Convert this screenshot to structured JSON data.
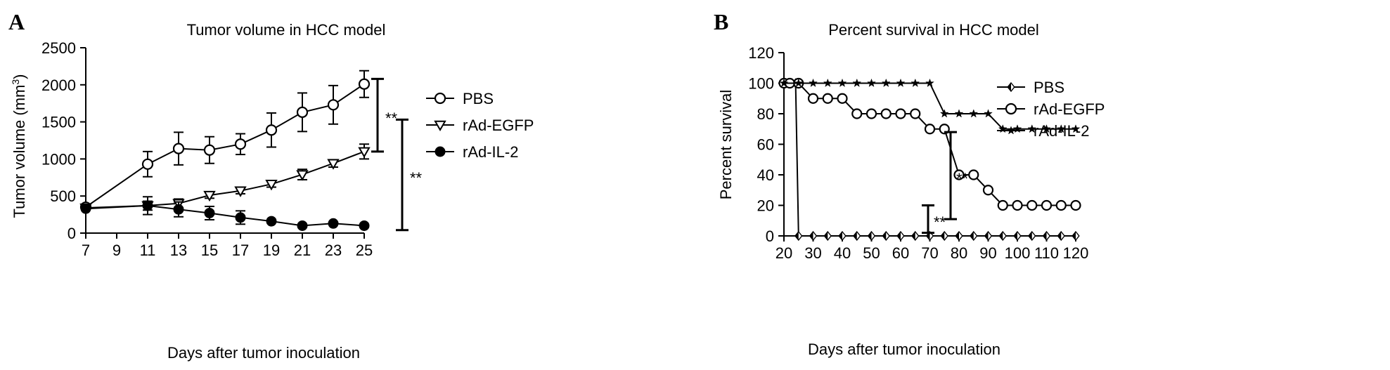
{
  "chart_data": [
    {
      "type": "line",
      "panel_label": "A",
      "title": "Tumor volume in HCC model",
      "xlabel": "Days after tumor inoculation",
      "ylabel_main": "Tumor volume (mm",
      "ylabel_sup": "3",
      "ylabel_end": ")",
      "xlim": [
        7,
        25
      ],
      "ylim": [
        0,
        2500
      ],
      "xticks": [
        7,
        9,
        11,
        13,
        15,
        17,
        19,
        21,
        23,
        25
      ],
      "yticks": [
        0,
        500,
        1000,
        1500,
        2000,
        2500
      ],
      "legend_position": "right",
      "series": [
        {
          "name": "PBS",
          "marker": "circle-open",
          "x": [
            7,
            11,
            13,
            15,
            17,
            19,
            21,
            23,
            25
          ],
          "y": [
            350,
            930,
            1140,
            1120,
            1200,
            1390,
            1630,
            1730,
            2010
          ],
          "err": [
            0,
            170,
            220,
            180,
            140,
            230,
            260,
            260,
            180
          ]
        },
        {
          "name": "rAd-EGFP",
          "marker": "triangle-down-open",
          "x": [
            7,
            11,
            13,
            15,
            17,
            19,
            21,
            23,
            25
          ],
          "y": [
            340,
            370,
            400,
            510,
            570,
            660,
            790,
            940,
            1100
          ],
          "err": [
            0,
            60,
            60,
            40,
            40,
            40,
            70,
            50,
            100
          ]
        },
        {
          "name": "rAd-IL-2",
          "marker": "circle-filled",
          "x": [
            7,
            11,
            13,
            15,
            17,
            19,
            21,
            23,
            25
          ],
          "y": [
            330,
            370,
            320,
            270,
            210,
            160,
            100,
            130,
            100
          ],
          "err": [
            0,
            120,
            100,
            90,
            90,
            0,
            0,
            0,
            0
          ]
        }
      ],
      "significance": [
        {
          "label": "**",
          "from": 1100,
          "to": 2080
        },
        {
          "label": "**",
          "from": 40,
          "to": 1530
        }
      ]
    },
    {
      "type": "line",
      "panel_label": "B",
      "title": "Percent survival in HCC model",
      "xlabel": "Days after tumor inoculation",
      "ylabel": "Percent survival",
      "xlim": [
        20,
        120
      ],
      "ylim": [
        0,
        120
      ],
      "xticks": [
        20,
        30,
        40,
        50,
        60,
        70,
        80,
        90,
        100,
        110,
        120
      ],
      "yticks": [
        0,
        20,
        40,
        60,
        80,
        100,
        120
      ],
      "legend_position": "right",
      "series": [
        {
          "name": "PBS",
          "marker": "diamond",
          "x": [
            20,
            22,
            24,
            25,
            30,
            35,
            40,
            45,
            50,
            55,
            60,
            65,
            70,
            75,
            80,
            85,
            90,
            95,
            100,
            105,
            110,
            115,
            120
          ],
          "y": [
            100,
            100,
            100,
            0,
            0,
            0,
            0,
            0,
            0,
            0,
            0,
            0,
            0,
            0,
            0,
            0,
            0,
            0,
            0,
            0,
            0,
            0,
            0
          ]
        },
        {
          "name": "rAd-EGFP",
          "marker": "circle-open",
          "x": [
            20,
            22,
            25,
            30,
            35,
            40,
            45,
            50,
            55,
            60,
            65,
            70,
            75,
            80,
            85,
            90,
            95,
            100,
            105,
            110,
            115,
            120
          ],
          "y": [
            100,
            100,
            100,
            90,
            90,
            90,
            80,
            80,
            80,
            80,
            80,
            70,
            70,
            40,
            40,
            30,
            20,
            20,
            20,
            20,
            20,
            20
          ]
        },
        {
          "name": "rAd-IL-2",
          "marker": "star",
          "x": [
            20,
            25,
            30,
            35,
            40,
            45,
            50,
            55,
            60,
            65,
            70,
            75,
            80,
            85,
            90,
            95,
            100,
            105,
            110,
            115,
            120
          ],
          "y": [
            100,
            100,
            100,
            100,
            100,
            100,
            100,
            100,
            100,
            100,
            100,
            80,
            80,
            80,
            80,
            70,
            70,
            70,
            70,
            70,
            70
          ]
        }
      ],
      "significance": [
        {
          "label": "**",
          "from": 11,
          "to": 68
        },
        {
          "label": "**",
          "from": 2,
          "to": 20
        }
      ]
    }
  ]
}
